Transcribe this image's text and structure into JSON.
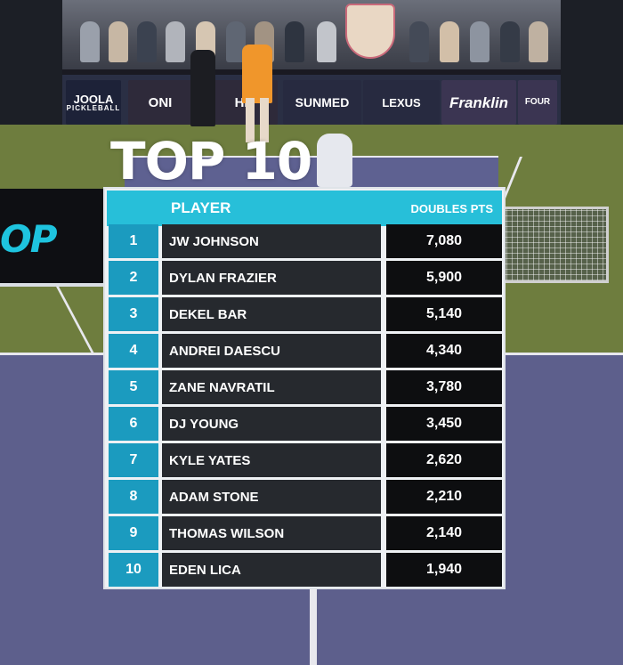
{
  "title": "TOP 10",
  "columns": {
    "player": "PLAYER",
    "points": "DOUBLES PTS"
  },
  "rankings": [
    {
      "rank": "1",
      "player": "JW JOHNSON",
      "points": "7,080"
    },
    {
      "rank": "2",
      "player": "DYLAN FRAZIER",
      "points": "5,900"
    },
    {
      "rank": "3",
      "player": "DEKEL BAR",
      "points": "5,140"
    },
    {
      "rank": "4",
      "player": "ANDREI DAESCU",
      "points": "4,340"
    },
    {
      "rank": "5",
      "player": "ZANE NAVRATIL",
      "points": "3,780"
    },
    {
      "rank": "6",
      "player": "DJ YOUNG",
      "points": "3,450"
    },
    {
      "rank": "7",
      "player": "KYLE YATES",
      "points": "2,620"
    },
    {
      "rank": "8",
      "player": "ADAM STONE",
      "points": "2,210"
    },
    {
      "rank": "9",
      "player": "THOMAS WILSON",
      "points": "2,140"
    },
    {
      "rank": "10",
      "player": "EDEN LICA",
      "points": "1,940"
    }
  ],
  "sponsors": {
    "joola": "JOOLA",
    "joola_sub": "PICKLEBALL",
    "oni": "ONI",
    "he": "HE",
    "sunmed": "SUNMED",
    "lexus": "LEXUS",
    "franklin": "Franklin",
    "four": "FOUR"
  },
  "promo_text": "OP",
  "colors": {
    "header_cyan": "#27bfd9",
    "rank_blue": "#1b9bbf",
    "name_bg": "#26292e",
    "points_bg": "#0d0e10",
    "court_purple": "#5d5f8c",
    "court_green": "#6e7d3e"
  }
}
